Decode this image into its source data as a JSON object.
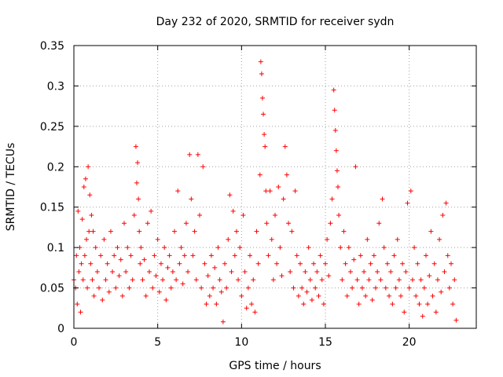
{
  "chart_data": {
    "type": "scatter",
    "title": "Day 232 of 2020, SRMTID for receiver sydn",
    "xlabel": "GPS time / hours",
    "ylabel": "SRMTID / TECUs",
    "xlim": [
      0,
      24
    ],
    "ylim": [
      0,
      0.35
    ],
    "xticks": [
      0,
      5,
      10,
      15,
      20
    ],
    "xtick_labels": [
      "0",
      "5",
      "10",
      "15",
      "20"
    ],
    "yticks": [
      0,
      0.05,
      0.1,
      0.15,
      0.2,
      0.25,
      0.3,
      0.35
    ],
    "ytick_labels": [
      "0",
      "0.05",
      "0.1",
      "0.15",
      "0.2",
      "0.25",
      "0.3",
      "0.35"
    ],
    "grid": true,
    "marker": "+",
    "color": "#ff0000",
    "series": [
      {
        "name": "SRMTID",
        "points": [
          [
            0.0,
            0.06
          ],
          [
            0.1,
            0.05
          ],
          [
            0.15,
            0.09
          ],
          [
            0.2,
            0.03
          ],
          [
            0.25,
            0.145
          ],
          [
            0.3,
            0.07
          ],
          [
            0.35,
            0.1
          ],
          [
            0.4,
            0.02
          ],
          [
            0.45,
            0.08
          ],
          [
            0.5,
            0.135
          ],
          [
            0.55,
            0.06
          ],
          [
            0.6,
            0.175
          ],
          [
            0.65,
            0.09
          ],
          [
            0.7,
            0.185
          ],
          [
            0.75,
            0.11
          ],
          [
            0.8,
            0.05
          ],
          [
            0.85,
            0.2
          ],
          [
            0.9,
            0.12
          ],
          [
            0.95,
            0.165
          ],
          [
            1.0,
            0.08
          ],
          [
            1.05,
            0.14
          ],
          [
            1.1,
            0.06
          ],
          [
            1.15,
            0.12
          ],
          [
            1.2,
            0.04
          ],
          [
            1.3,
            0.1
          ],
          [
            1.4,
            0.07
          ],
          [
            1.5,
            0.05
          ],
          [
            1.6,
            0.09
          ],
          [
            1.7,
            0.035
          ],
          [
            1.8,
            0.11
          ],
          [
            1.9,
            0.06
          ],
          [
            2.0,
            0.08
          ],
          [
            2.1,
            0.045
          ],
          [
            2.2,
            0.12
          ],
          [
            2.3,
            0.07
          ],
          [
            2.4,
            0.09
          ],
          [
            2.5,
            0.05
          ],
          [
            2.6,
            0.1
          ],
          [
            2.7,
            0.065
          ],
          [
            2.8,
            0.085
          ],
          [
            2.9,
            0.04
          ],
          [
            3.0,
            0.13
          ],
          [
            3.1,
            0.07
          ],
          [
            3.2,
            0.1
          ],
          [
            3.3,
            0.05
          ],
          [
            3.4,
            0.09
          ],
          [
            3.5,
            0.06
          ],
          [
            3.6,
            0.14
          ],
          [
            3.7,
            0.225
          ],
          [
            3.75,
            0.18
          ],
          [
            3.8,
            0.205
          ],
          [
            3.85,
            0.16
          ],
          [
            3.9,
            0.12
          ],
          [
            3.95,
            0.08
          ],
          [
            4.0,
            0.1
          ],
          [
            4.1,
            0.06
          ],
          [
            4.2,
            0.085
          ],
          [
            4.3,
            0.04
          ],
          [
            4.4,
            0.13
          ],
          [
            4.5,
            0.07
          ],
          [
            4.6,
            0.145
          ],
          [
            4.7,
            0.05
          ],
          [
            4.8,
            0.09
          ],
          [
            4.9,
            0.065
          ],
          [
            5.0,
            0.11
          ],
          [
            5.1,
            0.045
          ],
          [
            5.2,
            0.08
          ],
          [
            5.3,
            0.06
          ],
          [
            5.4,
            0.1
          ],
          [
            5.5,
            0.035
          ],
          [
            5.6,
            0.075
          ],
          [
            5.7,
            0.09
          ],
          [
            5.8,
            0.05
          ],
          [
            5.9,
            0.07
          ],
          [
            6.0,
            0.12
          ],
          [
            6.1,
            0.06
          ],
          [
            6.2,
            0.17
          ],
          [
            6.3,
            0.08
          ],
          [
            6.4,
            0.1
          ],
          [
            6.5,
            0.055
          ],
          [
            6.6,
            0.09
          ],
          [
            6.7,
            0.13
          ],
          [
            6.8,
            0.07
          ],
          [
            6.9,
            0.215
          ],
          [
            7.0,
            0.16
          ],
          [
            7.1,
            0.09
          ],
          [
            7.2,
            0.12
          ],
          [
            7.3,
            0.06
          ],
          [
            7.4,
            0.215
          ],
          [
            7.5,
            0.14
          ],
          [
            7.6,
            0.05
          ],
          [
            7.7,
            0.2
          ],
          [
            7.8,
            0.08
          ],
          [
            7.9,
            0.03
          ],
          [
            8.0,
            0.065
          ],
          [
            8.1,
            0.04
          ],
          [
            8.2,
            0.09
          ],
          [
            8.3,
            0.05
          ],
          [
            8.4,
            0.075
          ],
          [
            8.5,
            0.03
          ],
          [
            8.6,
            0.1
          ],
          [
            8.7,
            0.06
          ],
          [
            8.8,
            0.045
          ],
          [
            8.9,
            0.008
          ],
          [
            9.0,
            0.08
          ],
          [
            9.1,
            0.05
          ],
          [
            9.2,
            0.11
          ],
          [
            9.3,
            0.165
          ],
          [
            9.4,
            0.07
          ],
          [
            9.5,
            0.145
          ],
          [
            9.6,
            0.09
          ],
          [
            9.7,
            0.12
          ],
          [
            9.8,
            0.06
          ],
          [
            9.9,
            0.1
          ],
          [
            10.0,
            0.04
          ],
          [
            10.1,
            0.14
          ],
          [
            10.2,
            0.07
          ],
          [
            10.3,
            0.025
          ],
          [
            10.4,
            0.05
          ],
          [
            10.5,
            0.09
          ],
          [
            10.6,
            0.03
          ],
          [
            10.7,
            0.06
          ],
          [
            10.8,
            0.02
          ],
          [
            10.9,
            0.12
          ],
          [
            11.0,
            0.08
          ],
          [
            11.1,
            0.19
          ],
          [
            11.15,
            0.33
          ],
          [
            11.2,
            0.315
          ],
          [
            11.25,
            0.285
          ],
          [
            11.3,
            0.265
          ],
          [
            11.35,
            0.24
          ],
          [
            11.4,
            0.225
          ],
          [
            11.45,
            0.17
          ],
          [
            11.5,
            0.13
          ],
          [
            11.6,
            0.09
          ],
          [
            11.7,
            0.17
          ],
          [
            11.8,
            0.11
          ],
          [
            11.9,
            0.06
          ],
          [
            12.0,
            0.14
          ],
          [
            12.1,
            0.08
          ],
          [
            12.2,
            0.175
          ],
          [
            12.3,
            0.1
          ],
          [
            12.4,
            0.065
          ],
          [
            12.5,
            0.16
          ],
          [
            12.6,
            0.225
          ],
          [
            12.7,
            0.19
          ],
          [
            12.8,
            0.13
          ],
          [
            12.9,
            0.07
          ],
          [
            13.0,
            0.12
          ],
          [
            13.1,
            0.05
          ],
          [
            13.2,
            0.17
          ],
          [
            13.3,
            0.09
          ],
          [
            13.4,
            0.04
          ],
          [
            13.5,
            0.08
          ],
          [
            13.6,
            0.05
          ],
          [
            13.7,
            0.03
          ],
          [
            13.8,
            0.07
          ],
          [
            13.9,
            0.045
          ],
          [
            14.0,
            0.1
          ],
          [
            14.1,
            0.06
          ],
          [
            14.2,
            0.035
          ],
          [
            14.3,
            0.08
          ],
          [
            14.4,
            0.05
          ],
          [
            14.5,
            0.07
          ],
          [
            14.6,
            0.04
          ],
          [
            14.7,
            0.09
          ],
          [
            14.8,
            0.06
          ],
          [
            14.9,
            0.03
          ],
          [
            15.0,
            0.08
          ],
          [
            15.1,
            0.11
          ],
          [
            15.2,
            0.065
          ],
          [
            15.3,
            0.13
          ],
          [
            15.4,
            0.16
          ],
          [
            15.5,
            0.295
          ],
          [
            15.55,
            0.27
          ],
          [
            15.6,
            0.245
          ],
          [
            15.65,
            0.22
          ],
          [
            15.7,
            0.195
          ],
          [
            15.75,
            0.175
          ],
          [
            15.8,
            0.14
          ],
          [
            15.9,
            0.1
          ],
          [
            16.0,
            0.06
          ],
          [
            16.1,
            0.12
          ],
          [
            16.2,
            0.08
          ],
          [
            16.3,
            0.04
          ],
          [
            16.4,
            0.1
          ],
          [
            16.5,
            0.07
          ],
          [
            16.6,
            0.05
          ],
          [
            16.7,
            0.085
          ],
          [
            16.8,
            0.2
          ],
          [
            16.9,
            0.06
          ],
          [
            17.0,
            0.03
          ],
          [
            17.1,
            0.09
          ],
          [
            17.2,
            0.05
          ],
          [
            17.3,
            0.07
          ],
          [
            17.4,
            0.04
          ],
          [
            17.5,
            0.11
          ],
          [
            17.6,
            0.06
          ],
          [
            17.7,
            0.08
          ],
          [
            17.8,
            0.035
          ],
          [
            17.9,
            0.09
          ],
          [
            18.0,
            0.05
          ],
          [
            18.1,
            0.07
          ],
          [
            18.2,
            0.13
          ],
          [
            18.3,
            0.06
          ],
          [
            18.4,
            0.16
          ],
          [
            18.5,
            0.1
          ],
          [
            18.6,
            0.05
          ],
          [
            18.7,
            0.08
          ],
          [
            18.8,
            0.04
          ],
          [
            18.9,
            0.07
          ],
          [
            19.0,
            0.03
          ],
          [
            19.1,
            0.09
          ],
          [
            19.2,
            0.05
          ],
          [
            19.3,
            0.11
          ],
          [
            19.4,
            0.06
          ],
          [
            19.5,
            0.04
          ],
          [
            19.6,
            0.08
          ],
          [
            19.7,
            0.02
          ],
          [
            19.8,
            0.07
          ],
          [
            19.9,
            0.155
          ],
          [
            20.0,
            0.05
          ],
          [
            20.1,
            0.17
          ],
          [
            20.2,
            0.06
          ],
          [
            20.3,
            0.1
          ],
          [
            20.4,
            0.04
          ],
          [
            20.5,
            0.08
          ],
          [
            20.6,
            0.03
          ],
          [
            20.7,
            0.06
          ],
          [
            20.8,
            0.015
          ],
          [
            20.9,
            0.05
          ],
          [
            21.0,
            0.09
          ],
          [
            21.1,
            0.03
          ],
          [
            21.2,
            0.065
          ],
          [
            21.3,
            0.12
          ],
          [
            21.4,
            0.04
          ],
          [
            21.5,
            0.08
          ],
          [
            21.6,
            0.02
          ],
          [
            21.7,
            0.06
          ],
          [
            21.8,
            0.11
          ],
          [
            21.9,
            0.045
          ],
          [
            22.0,
            0.14
          ],
          [
            22.1,
            0.07
          ],
          [
            22.2,
            0.155
          ],
          [
            22.3,
            0.09
          ],
          [
            22.4,
            0.05
          ],
          [
            22.5,
            0.08
          ],
          [
            22.6,
            0.03
          ],
          [
            22.7,
            0.06
          ],
          [
            22.8,
            0.01
          ]
        ]
      }
    ]
  }
}
